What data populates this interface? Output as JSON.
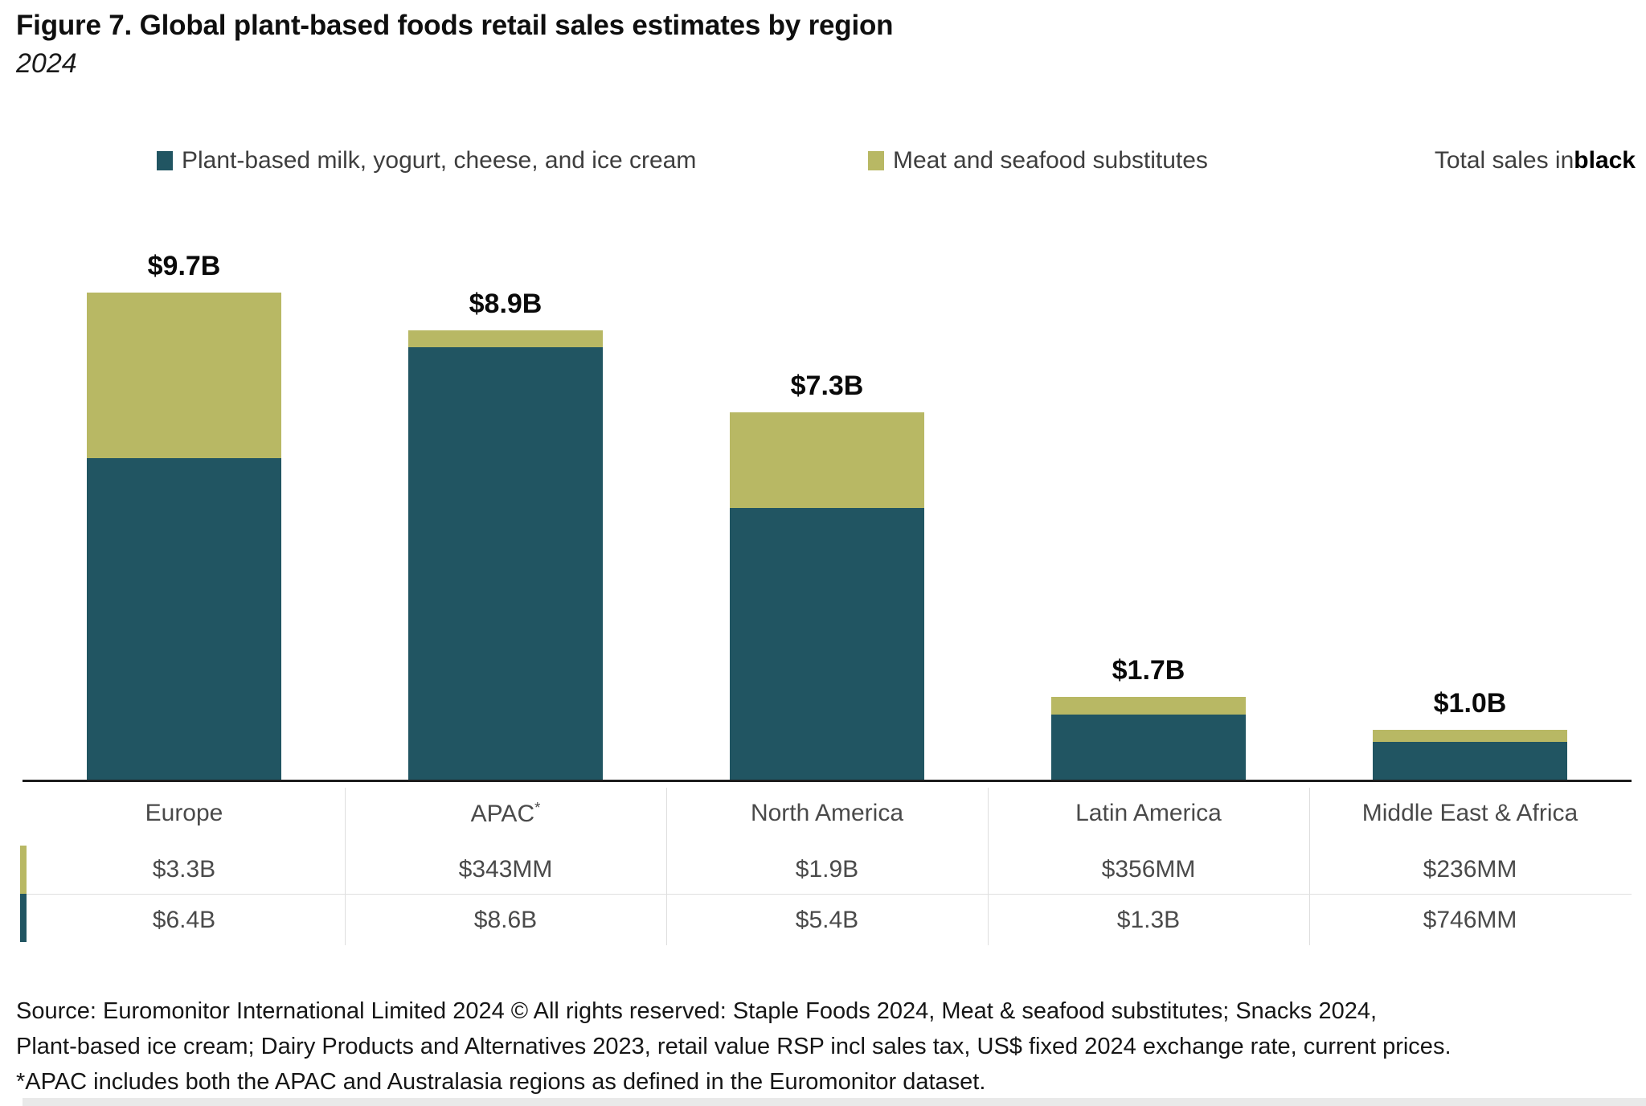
{
  "title": "Figure 7. Global plant-based foods retail sales estimates by region",
  "subtitle": "2024",
  "legend": {
    "items": [
      {
        "label": "Plant-based milk, yogurt, cheese, and ice cream",
        "color": "#215562"
      },
      {
        "label": "Meat and seafood substitutes",
        "color": "#B8B864"
      }
    ],
    "total_note_prefix": "Total sales in ",
    "total_note_bold": "black"
  },
  "chart_data": {
    "type": "bar",
    "stacked": true,
    "unit": "USD retail sales, 2024",
    "categories": [
      "Europe",
      "APAC*",
      "North America",
      "Latin America",
      "Middle East & Africa"
    ],
    "series": [
      {
        "name": "Plant-based milk, yogurt, cheese, and ice cream",
        "color": "#215562",
        "values_busd": [
          6.4,
          8.6,
          5.4,
          1.3,
          0.746
        ],
        "labels": [
          "$6.4B",
          "$8.6B",
          "$5.4B",
          "$1.3B",
          "$746MM"
        ]
      },
      {
        "name": "Meat and seafood substitutes",
        "color": "#B8B864",
        "values_busd": [
          3.3,
          0.343,
          1.9,
          0.356,
          0.236
        ],
        "labels": [
          "$3.3B",
          "$343MM",
          "$1.9B",
          "$356MM",
          "$236MM"
        ]
      }
    ],
    "totals": {
      "values_busd": [
        9.7,
        8.9,
        7.3,
        1.7,
        1.0
      ],
      "labels": [
        "$9.7B",
        "$8.9B",
        "$7.3B",
        "$1.7B",
        "$1.0B"
      ]
    },
    "legend_position": "top",
    "grid": false,
    "value_axis_hidden": true
  },
  "footer": {
    "lines": [
      "Source: Euromonitor International Limited 2024 © All rights reserved: Staple Foods 2024, Meat & seafood substitutes; Snacks 2024,",
      "Plant-based ice cream; Dairy Products and Alternatives 2023, retail value RSP incl sales tax, US$ fixed 2024 exchange rate, current prices.",
      "*APAC includes both the APAC and Australasia regions as defined in the Euromonitor dataset."
    ]
  }
}
